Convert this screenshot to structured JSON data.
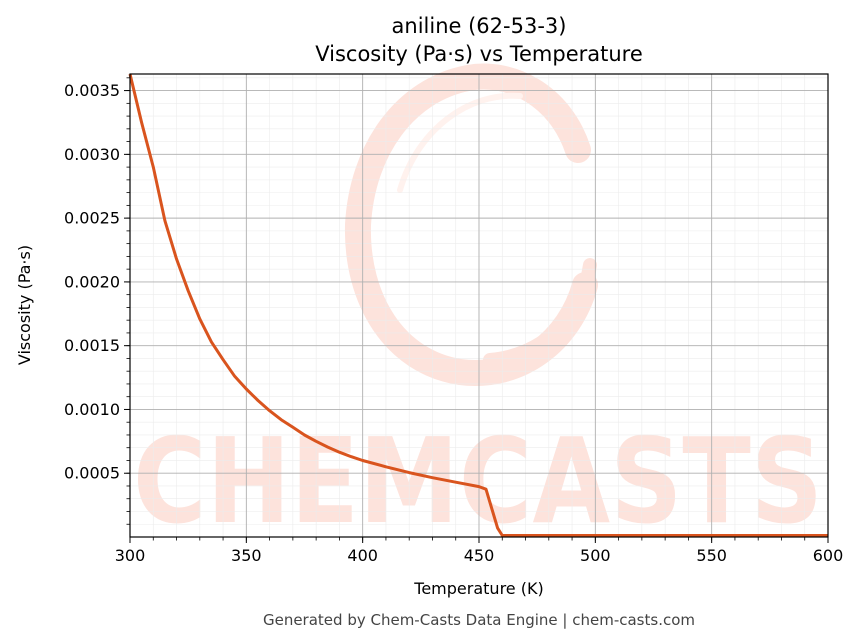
{
  "chart_data": {
    "type": "line",
    "title": "aniline (62-53-3)",
    "subtitle": "Viscosity (Pa·s) vs Temperature",
    "xlabel": "Temperature (K)",
    "ylabel": "Viscosity (Pa·s)",
    "xlim": [
      300,
      600
    ],
    "ylim": [
      0,
      0.00363
    ],
    "x_ticks": [
      300,
      350,
      400,
      450,
      500,
      550,
      600
    ],
    "x_tick_labels": [
      "300",
      "350",
      "400",
      "450",
      "500",
      "550",
      "600"
    ],
    "y_ticks": [
      0.0005,
      0.001,
      0.0015,
      0.002,
      0.0025,
      0.003,
      0.0035
    ],
    "y_tick_labels": [
      "0.0005",
      "0.0010",
      "0.0015",
      "0.0020",
      "0.0025",
      "0.0030",
      "0.0035"
    ],
    "grid": true,
    "minor_grid": true,
    "line_color": "#d9541e",
    "series": [
      {
        "x": [
          300,
          305,
          310,
          315,
          320,
          325,
          330,
          335,
          340,
          345,
          350,
          355,
          360,
          365,
          370,
          375,
          380,
          385,
          390,
          395,
          400,
          410,
          420,
          430,
          440,
          450,
          453,
          458,
          460,
          600
        ],
        "y": [
          0.00363,
          0.00325,
          0.0029,
          0.00248,
          0.00218,
          0.00193,
          0.00171,
          0.00153,
          0.00139,
          0.00126,
          0.00116,
          0.00107,
          0.00099,
          0.00092,
          0.00086,
          0.0008,
          0.00075,
          0.000705,
          0.000665,
          0.00063,
          0.0006,
          0.00055,
          0.000505,
          0.000465,
          0.00043,
          0.000395,
          0.000375,
          7e-05,
          1.2e-05,
          1.2e-05
        ]
      }
    ]
  },
  "watermark": {
    "text": "CHEMCASTS",
    "color": "#fde3dc"
  },
  "footer": {
    "text": "Generated by Chem-Casts Data Engine | chem-casts.com"
  }
}
